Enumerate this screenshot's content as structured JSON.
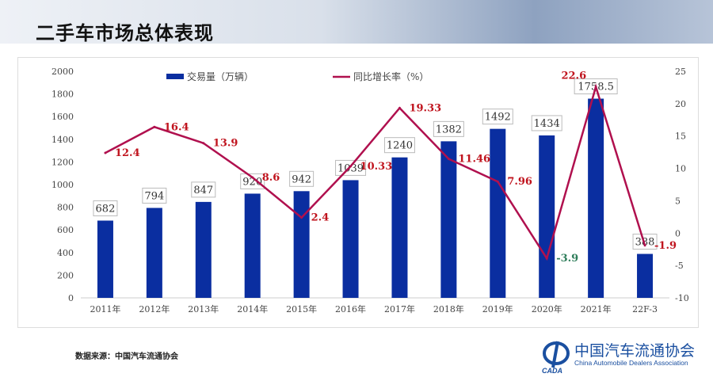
{
  "title": "二手车市场总体表现",
  "source": "数据来源：中国汽车流通协会",
  "logo": {
    "cn": "中国汽车流通协会",
    "en": "China Automobile Dealers Association",
    "abbr": "CADA"
  },
  "chart_data": {
    "type": "bar+line",
    "categories": [
      "2011年",
      "2012年",
      "2013年",
      "2014年",
      "2015年",
      "2016年",
      "2017年",
      "2018年",
      "2019年",
      "2020年",
      "2021年",
      "22F-3"
    ],
    "series": [
      {
        "name": "交易量（万辆）",
        "type": "bar",
        "axis": "left",
        "color": "#0a2ea0",
        "values": [
          682,
          794,
          847,
          920,
          942,
          1039,
          1240,
          1382,
          1492,
          1434,
          1758.5,
          388
        ]
      },
      {
        "name": "同比增长率（%）",
        "type": "line",
        "axis": "right",
        "color": "#b0104e",
        "values": [
          12.4,
          16.4,
          13.9,
          8.6,
          2.4,
          10.33,
          19.33,
          11.46,
          7.96,
          -3.9,
          22.6,
          -1.9
        ]
      }
    ],
    "left_axis": {
      "range": [
        0,
        2000
      ],
      "ticks": [
        0,
        200,
        400,
        600,
        800,
        1000,
        1200,
        1400,
        1600,
        1800,
        2000
      ]
    },
    "right_axis": {
      "range": [
        -10,
        25
      ],
      "ticks": [
        -10,
        -5,
        0,
        5,
        10,
        15,
        20,
        25
      ]
    },
    "legend_position": "top"
  }
}
